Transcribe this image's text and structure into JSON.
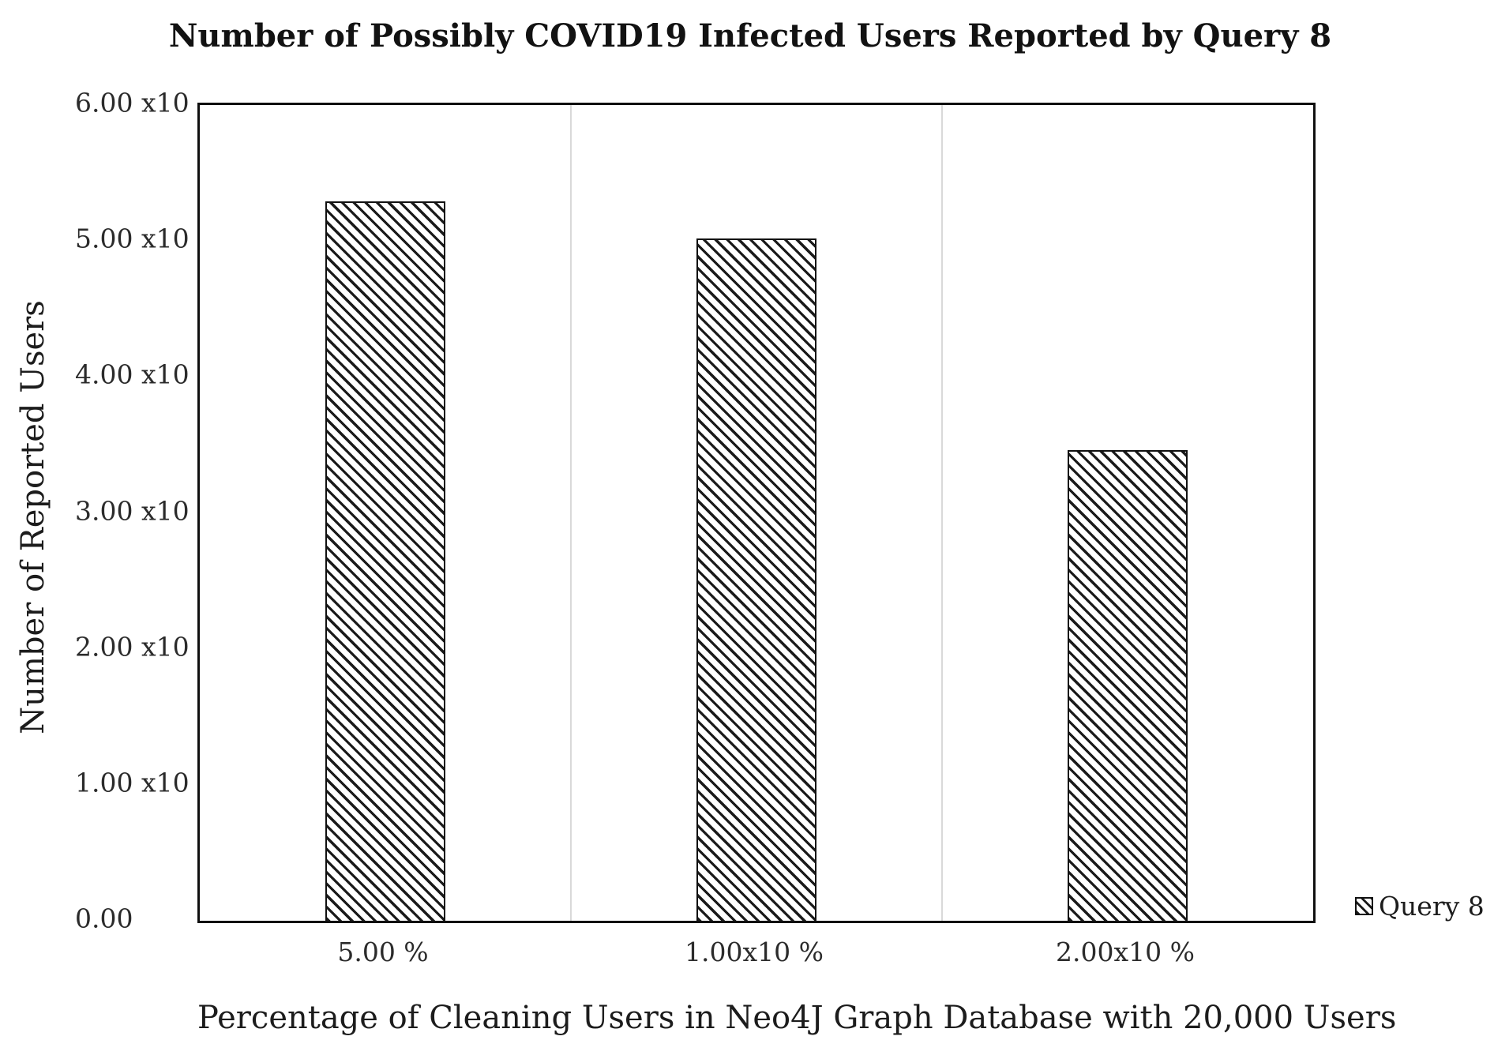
{
  "figure": {
    "title": "Number of Possibly COVID19 Infected Users Reported by Query 8",
    "x_axis_title": "Percentage of Cleaning Users in Neo4J Graph Database with 20,000 Users",
    "y_axis_title": "Number of Reported Users"
  },
  "legend": {
    "label": "Query 8",
    "marker": "hatched-square"
  },
  "colors": {
    "background": "#ffffff",
    "axis_border": "#0f0f0f",
    "bar_hatch": "#1a1a1a",
    "bar_fill": "#ffffff",
    "gridline": "#d9d9d9",
    "text": "#1c1c1c"
  },
  "chart_data": {
    "type": "bar",
    "title": "Number of Possibly COVID19 Infected Users Reported by Query 8",
    "xlabel": "Percentage of Cleaning Users in Neo4J Graph Database with 20,000 Users",
    "ylabel": "Number of Reported Users",
    "categories": [
      "5.00 %",
      "1.00x10 %",
      "2.00x10 %"
    ],
    "series": [
      {
        "name": "Query 8",
        "values": [
          5.29,
          5.02,
          3.46
        ]
      }
    ],
    "y_tick_labels": [
      "6.00 x10",
      "5.00 x10",
      "4.00 x10",
      "3.00 x10",
      "2.00 x10",
      "1.00 x10",
      "0.00"
    ],
    "ylim": [
      0,
      6
    ],
    "y_scale_note": "tick labels displayed as value x10 (exponent not visible in figure)",
    "grid": "vertical category separators only, no horizontal gridlines",
    "bar_style": "white fill with black diagonal hatch (\\ direction), black outline",
    "legend_position": "outside right, near bottom axis"
  }
}
